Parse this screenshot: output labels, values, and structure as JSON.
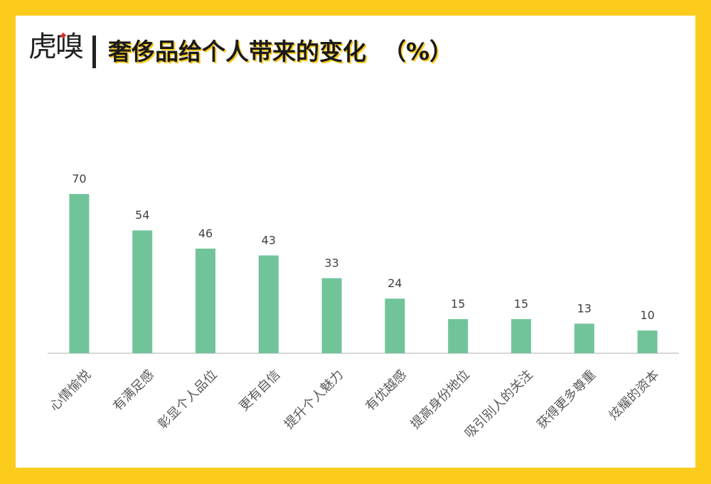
{
  "brand": {
    "logo_text": "虎嗅"
  },
  "colors": {
    "frame": "#FCCC1C",
    "bar": "#71C49A",
    "axis": "#C8C8C8"
  },
  "chart_data": {
    "type": "bar",
    "title": "奢侈品给个人带来的变化  （%）",
    "categories": [
      "心情愉悦",
      "有满足感",
      "彰显个人品位",
      "更有自信",
      "提升个人魅力",
      "有优越感",
      "提高身份地位",
      "吸引别人的关注",
      "获得更多尊重",
      "炫耀的资本"
    ],
    "values": [
      70,
      54,
      46,
      43,
      33,
      24,
      15,
      15,
      13,
      10
    ],
    "xlabel": "",
    "ylabel": "",
    "ylim": [
      0,
      80
    ],
    "grid": false,
    "legend": "none"
  }
}
